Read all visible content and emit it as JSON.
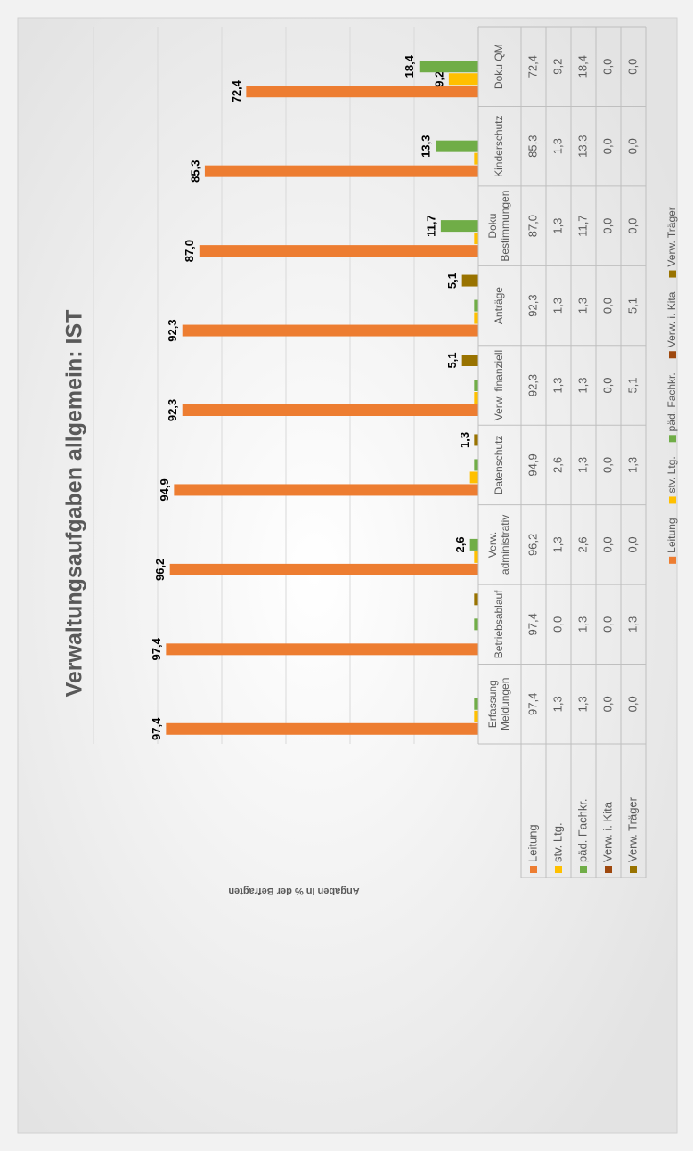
{
  "chart_data": {
    "type": "bar",
    "title": "Verwaltungsaufgaben allgemein: IST",
    "y_label": "Angaben in % der Befragten",
    "categories": [
      "Erfassung Meldungen",
      "Betriebsablauf",
      "Verw. administrativ",
      "Datenschutz",
      "Verw. finanziell",
      "Anträge",
      "Doku Bestimmungen",
      "Kinderschutz",
      "Doku QM"
    ],
    "series": [
      {
        "name": "Leitung",
        "color": "#ed7d31",
        "values": [
          97.4,
          97.4,
          96.2,
          94.9,
          92.3,
          92.3,
          87.0,
          85.3,
          72.4
        ],
        "value_labels": [
          "97,4",
          "97,4",
          "96,2",
          "94,9",
          "92,3",
          "92,3",
          "87,0",
          "85,3",
          "72,4"
        ],
        "data_labels": [
          "97,4",
          "97,4",
          "96,2",
          "94,9",
          "92,3",
          "92,3",
          "87,0",
          "85,3",
          "72,4"
        ]
      },
      {
        "name": "stv. Ltg.",
        "color": "#ffc000",
        "values": [
          1.3,
          0.0,
          1.3,
          2.6,
          1.3,
          1.3,
          1.3,
          1.3,
          9.2
        ],
        "value_labels": [
          "1,3",
          "0,0",
          "1,3",
          "2,6",
          "1,3",
          "1,3",
          "1,3",
          "1,3",
          "9,2"
        ],
        "data_labels": [
          null,
          null,
          null,
          null,
          null,
          null,
          null,
          null,
          "9,2"
        ]
      },
      {
        "name": "päd. Fachkr.",
        "color": "#70ad47",
        "values": [
          1.3,
          1.3,
          2.6,
          1.3,
          1.3,
          1.3,
          11.7,
          13.3,
          18.4
        ],
        "value_labels": [
          "1,3",
          "1,3",
          "2,6",
          "1,3",
          "1,3",
          "1,3",
          "11,7",
          "13,3",
          "18,4"
        ],
        "data_labels": [
          null,
          null,
          "2,6",
          null,
          null,
          null,
          "11,7",
          "13,3",
          "18,4"
        ]
      },
      {
        "name": "Verw. i. Kita",
        "color": "#9e480e",
        "values": [
          0.0,
          0.0,
          0.0,
          0.0,
          0.0,
          0.0,
          0.0,
          0.0,
          0.0
        ],
        "value_labels": [
          "0,0",
          "0,0",
          "0,0",
          "0,0",
          "0,0",
          "0,0",
          "0,0",
          "0,0",
          "0,0"
        ],
        "data_labels": [
          null,
          null,
          null,
          null,
          null,
          null,
          null,
          null,
          null
        ]
      },
      {
        "name": "Verw. Träger",
        "color": "#997300",
        "values": [
          0.0,
          1.3,
          0.0,
          1.3,
          5.1,
          5.1,
          0.0,
          0.0,
          0.0
        ],
        "value_labels": [
          "0,0",
          "1,3",
          "0,0",
          "1,3",
          "5,1",
          "5,1",
          "0,0",
          "0,0",
          "0,0"
        ],
        "data_labels": [
          null,
          null,
          null,
          "1,3",
          "5,1",
          "5,1",
          null,
          null,
          null
        ]
      }
    ],
    "ylim": [
      0,
      120
    ],
    "yticks": [
      0,
      20,
      40,
      60,
      80,
      100,
      120
    ],
    "grid": true,
    "data_table": true,
    "legend": "bottom"
  }
}
